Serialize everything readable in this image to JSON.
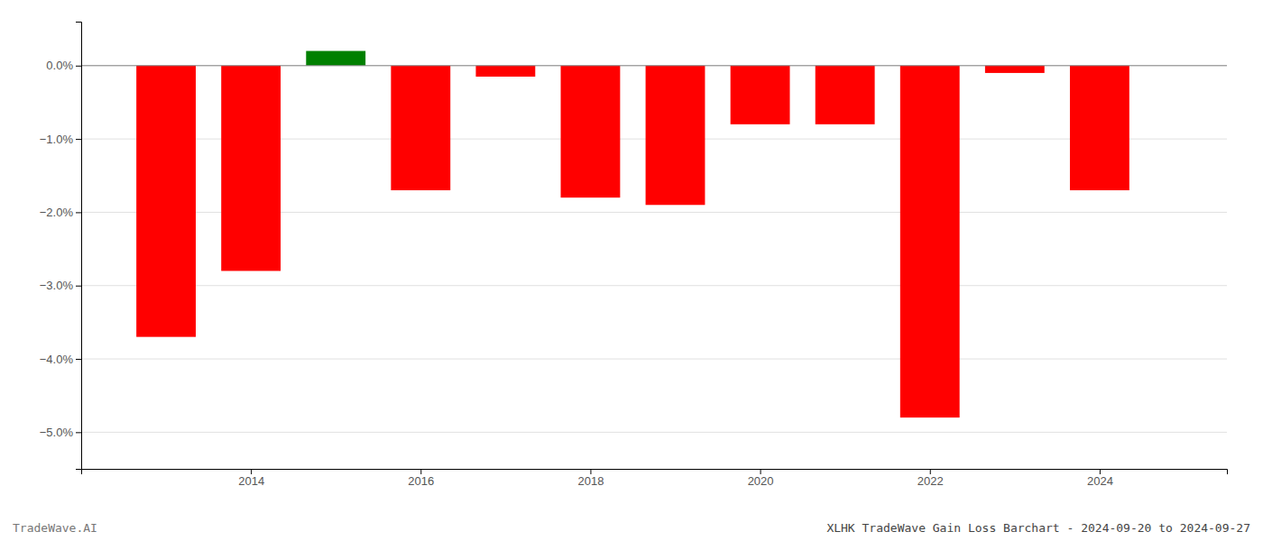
{
  "chart_data": {
    "type": "bar",
    "title": "XLHK TradeWave Gain Loss Barchart - 2024-09-20 to 2024-09-27",
    "annotations": [
      "TradeWave.AI"
    ],
    "x": [
      2013,
      2014,
      2015,
      2016,
      2017,
      2018,
      2019,
      2020,
      2021,
      2022,
      2023,
      2024
    ],
    "values": [
      -0.037,
      -0.028,
      0.002,
      -0.017,
      -0.0015,
      -0.018,
      -0.019,
      -0.008,
      -0.008,
      -0.048,
      -0.001,
      -0.017
    ],
    "colors": [
      "#ff0000",
      "#ff0000",
      "#008000",
      "#ff0000",
      "#ff0000",
      "#ff0000",
      "#ff0000",
      "#ff0000",
      "#ff0000",
      "#ff0000",
      "#ff0000",
      "#ff0000"
    ],
    "xlim": [
      2012.0,
      2025.5
    ],
    "xticks": [
      2014,
      2016,
      2018,
      2020,
      2022,
      2024
    ],
    "ylim": [
      -0.055,
      0.006
    ],
    "yticks": [
      {
        "value": 0.0,
        "label": "0.0%"
      },
      {
        "value": -0.01,
        "label": "−1.0%"
      },
      {
        "value": -0.02,
        "label": "−2.0%"
      },
      {
        "value": -0.03,
        "label": "−3.0%"
      },
      {
        "value": -0.04,
        "label": "−4.0%"
      },
      {
        "value": -0.05,
        "label": "−5.0%"
      }
    ],
    "grid": true
  }
}
